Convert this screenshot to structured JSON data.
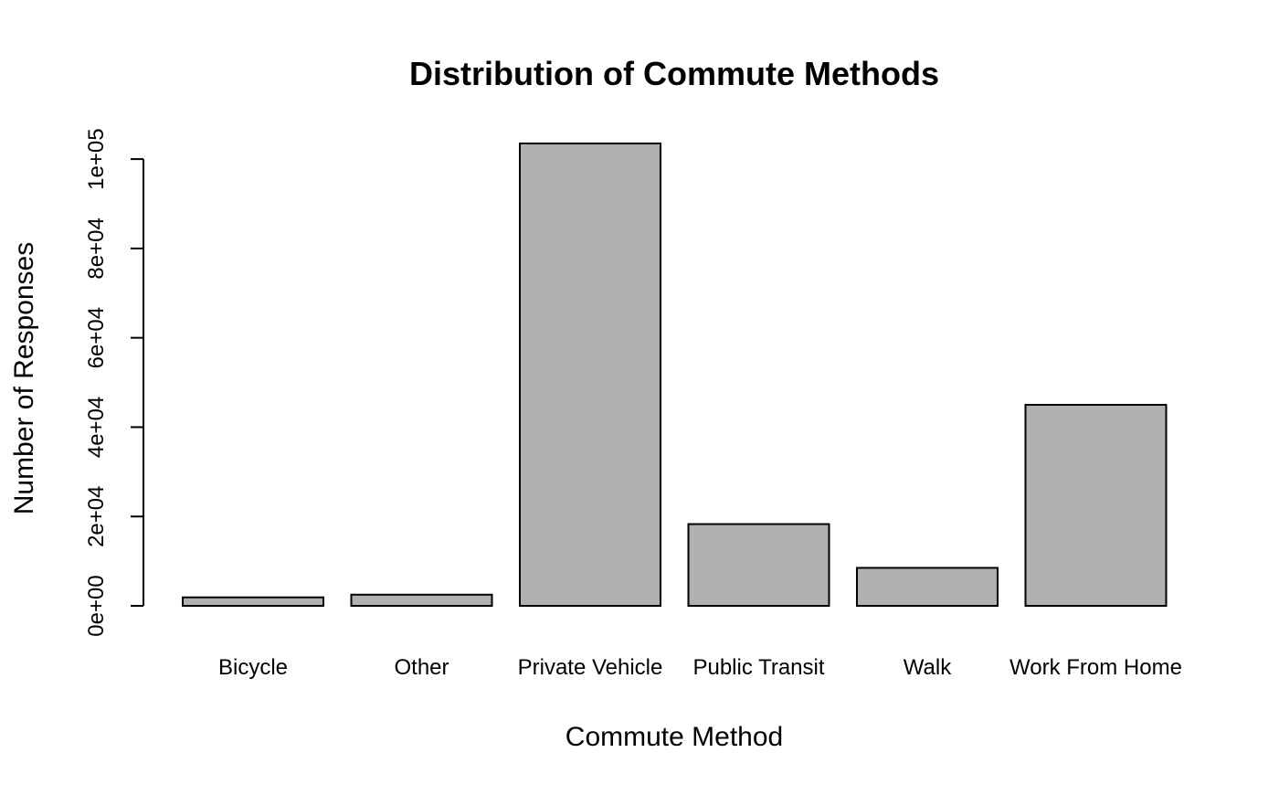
{
  "chart_data": {
    "type": "bar",
    "title": "Distribution of Commute Methods",
    "xlabel": "Commute Method",
    "ylabel": "Number of Responses",
    "categories": [
      "Bicycle",
      "Other",
      "Private Vehicle",
      "Public Transit",
      "Walk",
      "Work From Home"
    ],
    "values": [
      1900,
      2500,
      103500,
      18300,
      8500,
      45000
    ],
    "ylim": [
      0,
      103500
    ],
    "yticks": [
      0,
      20000,
      40000,
      60000,
      80000,
      100000
    ],
    "ytick_labels": [
      "0e+00",
      "2e+04",
      "4e+04",
      "6e+04",
      "8e+04",
      "1e+05"
    ],
    "grid": false,
    "legend": "none",
    "colors": {
      "bar_fill": "#b0b0b0",
      "bar_stroke": "#000000"
    }
  }
}
